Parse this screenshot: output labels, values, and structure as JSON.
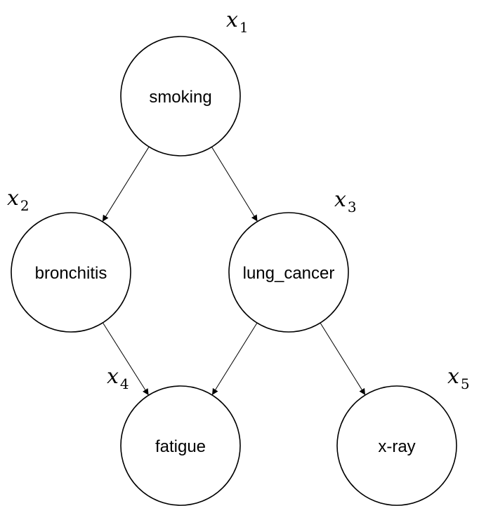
{
  "diagram": {
    "type": "bayesian-network",
    "nodes": [
      {
        "id": "smoking",
        "label": "smoking",
        "var": "x",
        "sub": "1"
      },
      {
        "id": "bronchitis",
        "label": "bronchitis",
        "var": "x",
        "sub": "2"
      },
      {
        "id": "lung_cancer",
        "label": "lung_cancer",
        "var": "x",
        "sub": "3"
      },
      {
        "id": "fatigue",
        "label": "fatigue",
        "var": "x",
        "sub": "4"
      },
      {
        "id": "xray",
        "label": "x-ray",
        "var": "x",
        "sub": "5"
      }
    ],
    "edges": [
      {
        "from": "smoking",
        "to": "bronchitis"
      },
      {
        "from": "smoking",
        "to": "lung_cancer"
      },
      {
        "from": "bronchitis",
        "to": "fatigue"
      },
      {
        "from": "lung_cancer",
        "to": "fatigue"
      },
      {
        "from": "lung_cancer",
        "to": "xray"
      }
    ]
  }
}
